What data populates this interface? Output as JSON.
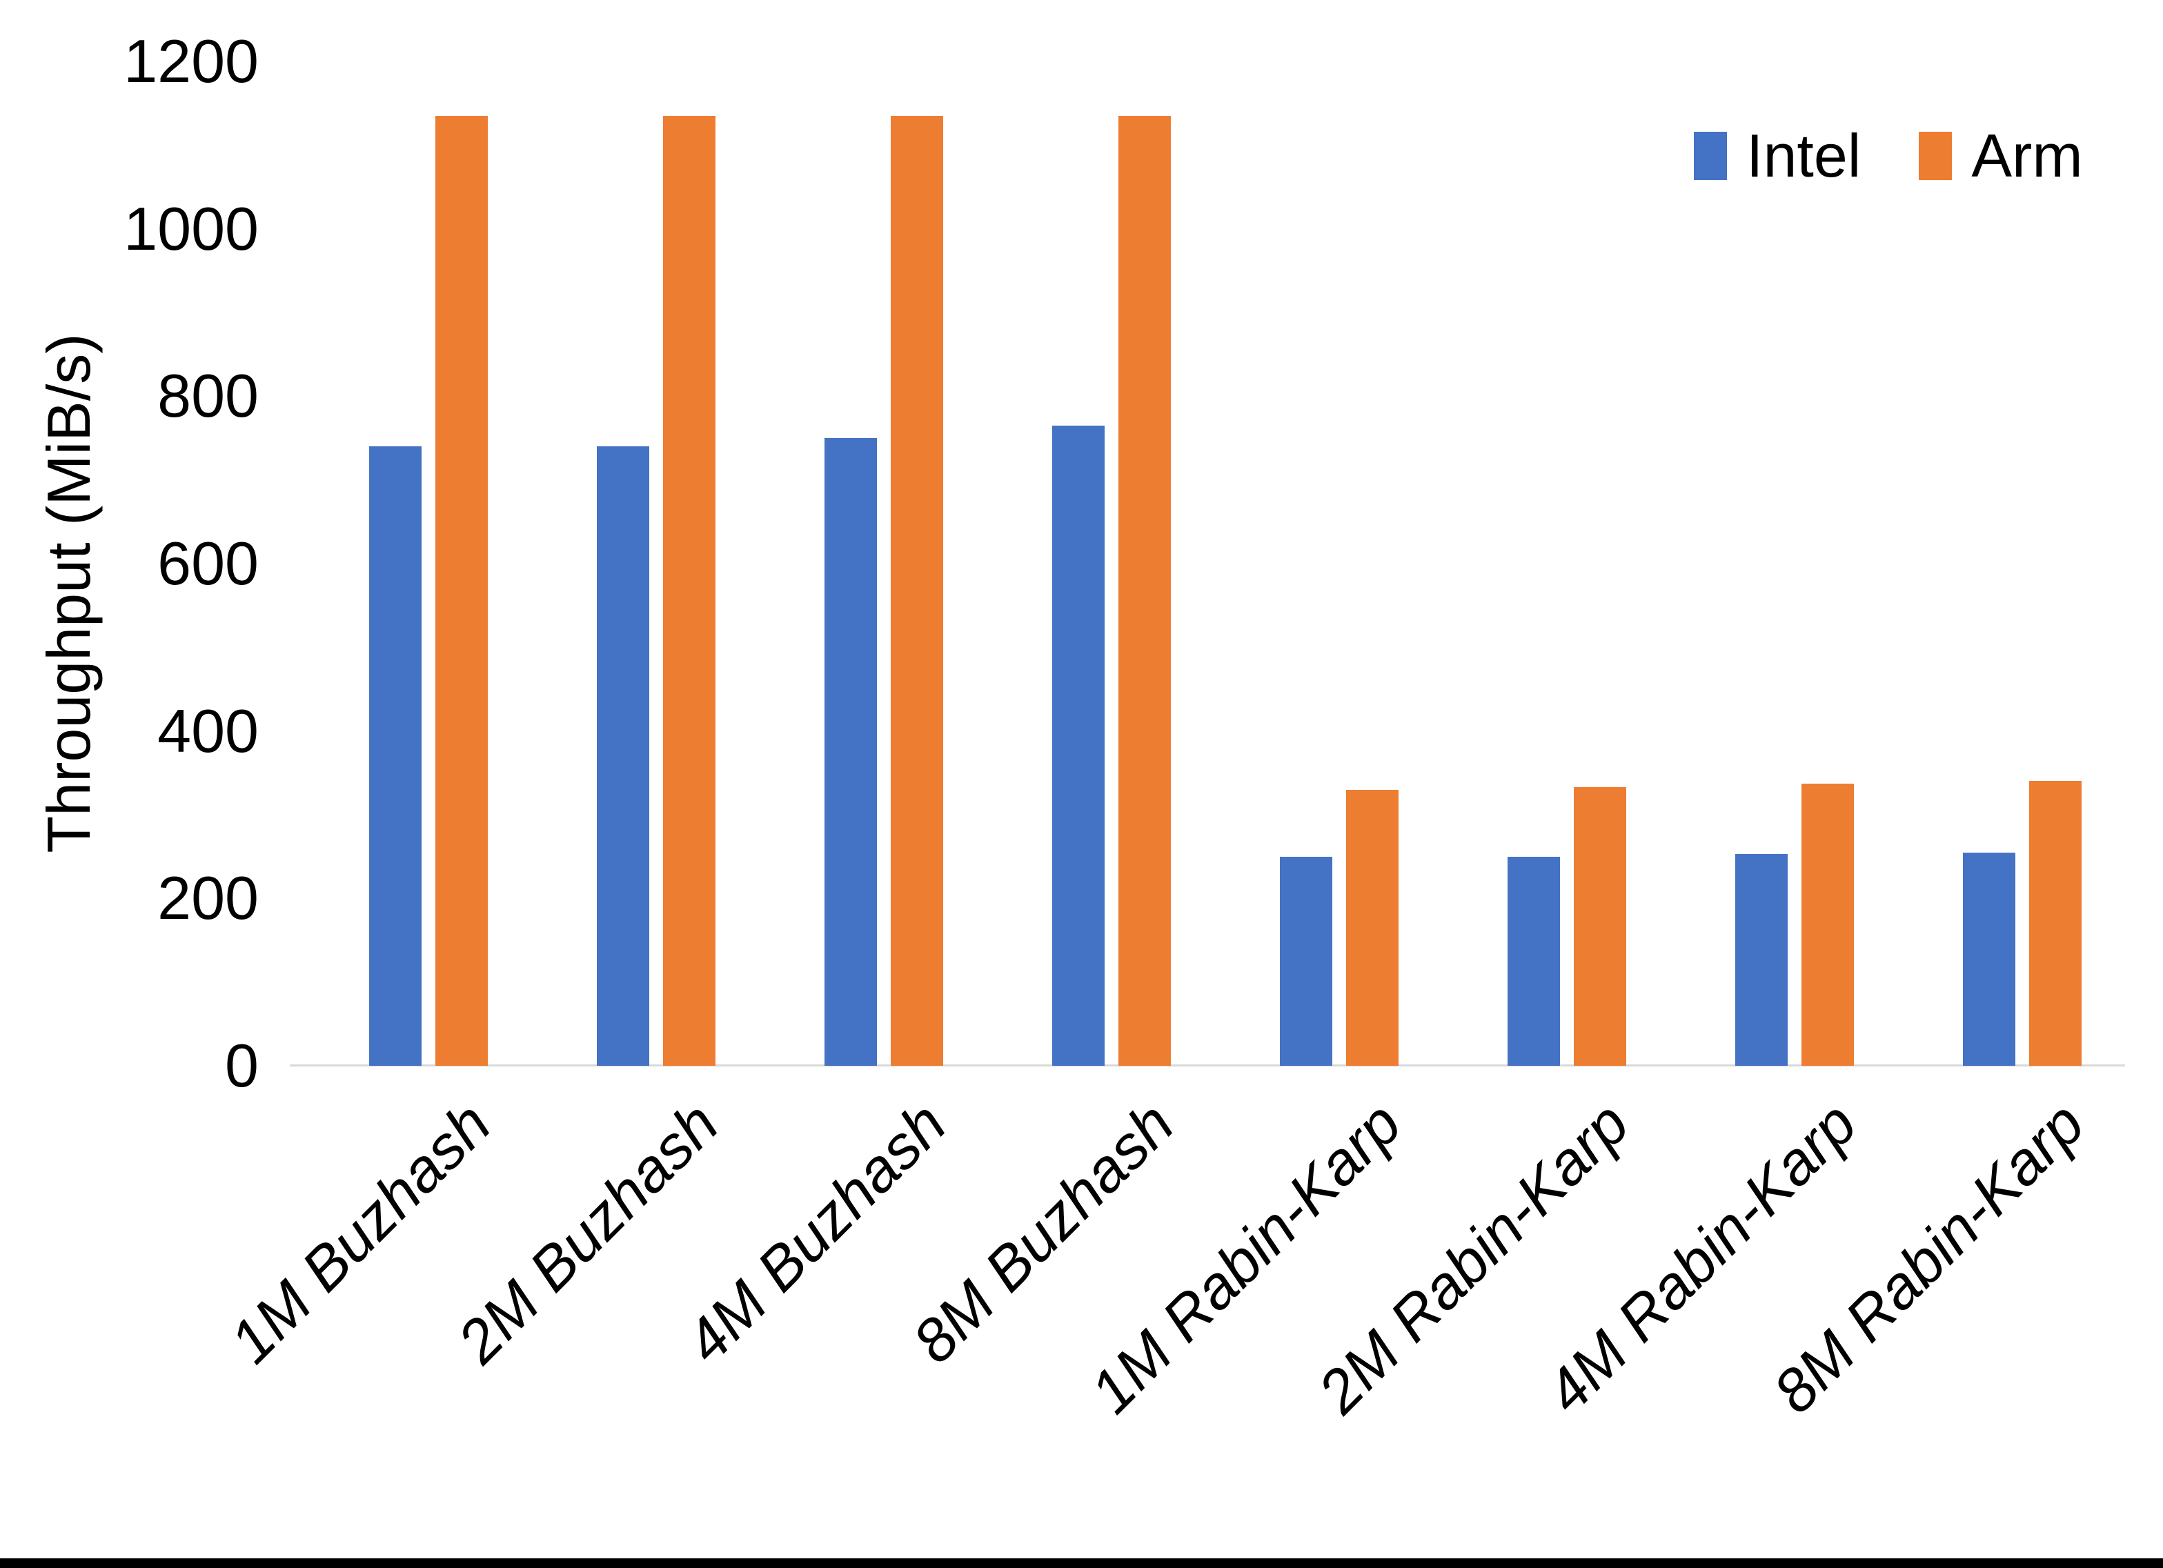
{
  "chart_data": {
    "type": "bar",
    "title": "",
    "ylabel": "Throughput (MiB/s)",
    "xlabel": "",
    "ylim": [
      0,
      1200
    ],
    "yticks": [
      0,
      200,
      400,
      600,
      800,
      1000,
      1200
    ],
    "grid": false,
    "legend_position": "top-right",
    "categories": [
      "1M Buzhash",
      "2M Buzhash",
      "4M Buzhash",
      "8M Buzhash",
      "1M Rabin-Karp",
      "2M Rabin-Karp",
      "4M Rabin-Karp",
      "8M Rabin-Karp"
    ],
    "series": [
      {
        "name": "Intel",
        "color": "#4472C4",
        "values": [
          740,
          740,
          750,
          765,
          250,
          250,
          253,
          255
        ]
      },
      {
        "name": "Arm",
        "color": "#ED7D31",
        "values": [
          1135,
          1135,
          1135,
          1135,
          330,
          333,
          337,
          340
        ]
      }
    ]
  },
  "colors": {
    "axis_line": "#D9D9D9",
    "text": "#000000",
    "background": "#FFFFFF",
    "bottom_border": "#000000"
  }
}
